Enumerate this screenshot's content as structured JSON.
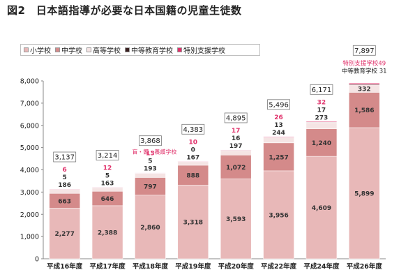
{
  "title": "図2　日本語指導が必要な日本国籍の児童生徒数",
  "legend": [
    {
      "label": "小学校",
      "color": "#e8b8b8"
    },
    {
      "label": "中学校",
      "color": "#d48a8a"
    },
    {
      "label": "高等学校",
      "color": "#f5e4e4"
    },
    {
      "label": "中等教育学校",
      "color": "#3a1f1f"
    },
    {
      "label": "特別支援学校",
      "color": "#e0306a"
    }
  ],
  "chart_data": {
    "type": "bar",
    "stacked": true,
    "categories": [
      "平成16年度",
      "平成17年度",
      "平成18年度",
      "平成19年度",
      "平成20年度",
      "平成22年度",
      "平成24年度",
      "平成26年度"
    ],
    "series": [
      {
        "name": "小学校",
        "values": [
          2277,
          2388,
          2860,
          3318,
          3593,
          3956,
          4609,
          5899
        ]
      },
      {
        "name": "中学校",
        "values": [
          663,
          646,
          797,
          888,
          1072,
          1257,
          1240,
          1586
        ]
      },
      {
        "name": "高等学校",
        "values": [
          186,
          163,
          193,
          167,
          197,
          244,
          273,
          332
        ]
      },
      {
        "name": "中等教育学校",
        "values": [
          5,
          5,
          5,
          0,
          16,
          13,
          17,
          31
        ]
      },
      {
        "name": "特別支援学校",
        "values": [
          6,
          12,
          13,
          10,
          17,
          26,
          32,
          49
        ]
      }
    ],
    "totals": [
      3137,
      3214,
      3868,
      4383,
      4895,
      5496,
      6171,
      7897
    ],
    "y_ticks": [
      "0",
      "1,000",
      "2,000",
      "3,000",
      "4,000",
      "5,000",
      "6,000",
      "7,000",
      "8,000"
    ],
    "ylim": [
      0,
      8000
    ],
    "grid": false,
    "legend_position": "top-left",
    "annotations": [
      {
        "text": "盲・聾・養護学校",
        "category": "平成18年度"
      },
      {
        "text": "特別支援学校49",
        "category": "平成26年度"
      },
      {
        "text": "中等教育学校 31",
        "category": "平成26年度"
      }
    ]
  }
}
